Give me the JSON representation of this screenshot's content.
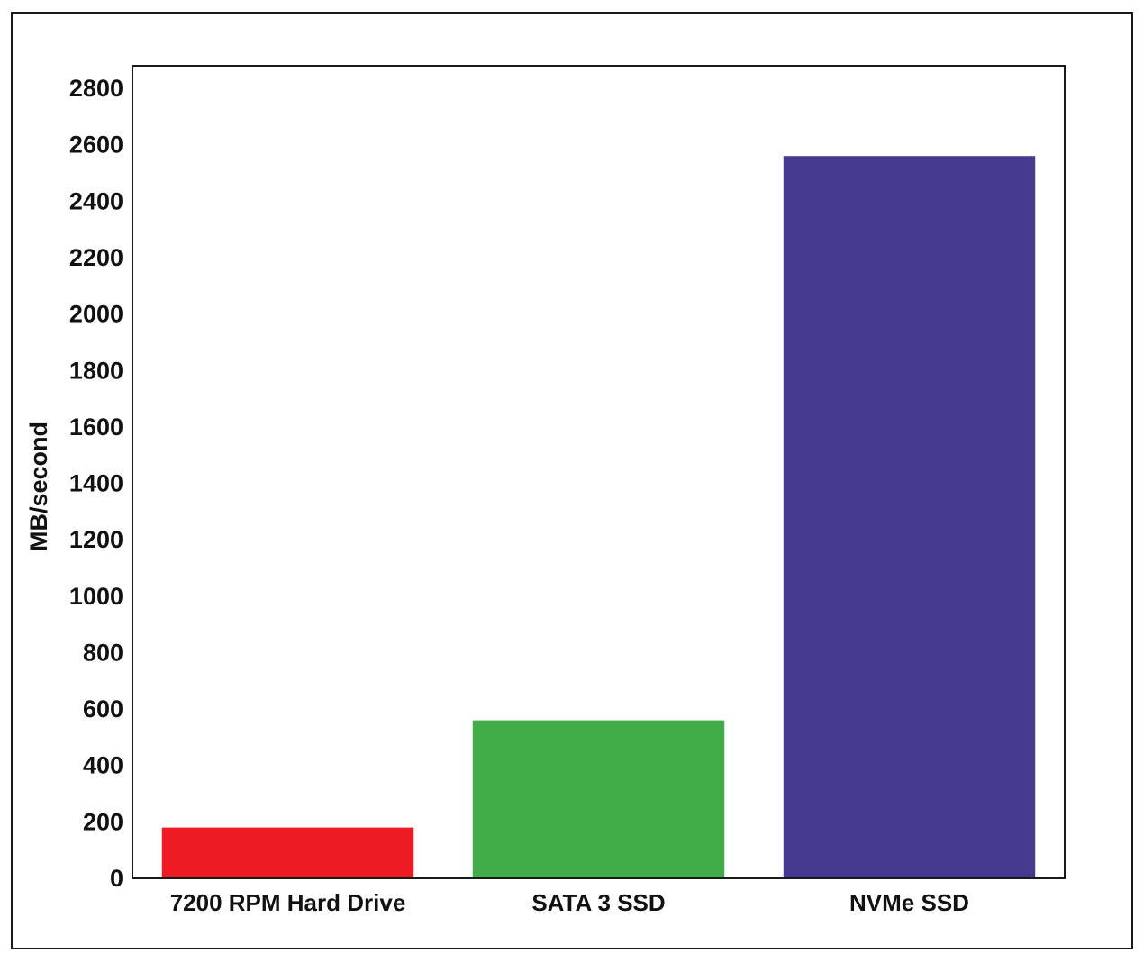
{
  "chart_data": {
    "type": "bar",
    "title": "",
    "xlabel": "",
    "ylabel": "MB/second",
    "categories": [
      "7200 RPM Hard Drive",
      "SATA 3 SSD",
      "NVMe SSD"
    ],
    "values": [
      180,
      560,
      2560
    ],
    "colors": [
      "#ed1c24",
      "#41ad49",
      "#463990"
    ],
    "ylim": [
      0,
      2880
    ],
    "yticks": [
      0,
      200,
      400,
      600,
      800,
      1000,
      1200,
      1400,
      1600,
      1800,
      2000,
      2200,
      2400,
      2600,
      2800
    ],
    "ytick_labels": [
      "0",
      "200",
      "400",
      "600",
      "800",
      "1000",
      "1200",
      "1400",
      "1600",
      "1800",
      "2000",
      "2200",
      "2400",
      "2600",
      "2800"
    ],
    "grid": false,
    "legend": "none"
  }
}
